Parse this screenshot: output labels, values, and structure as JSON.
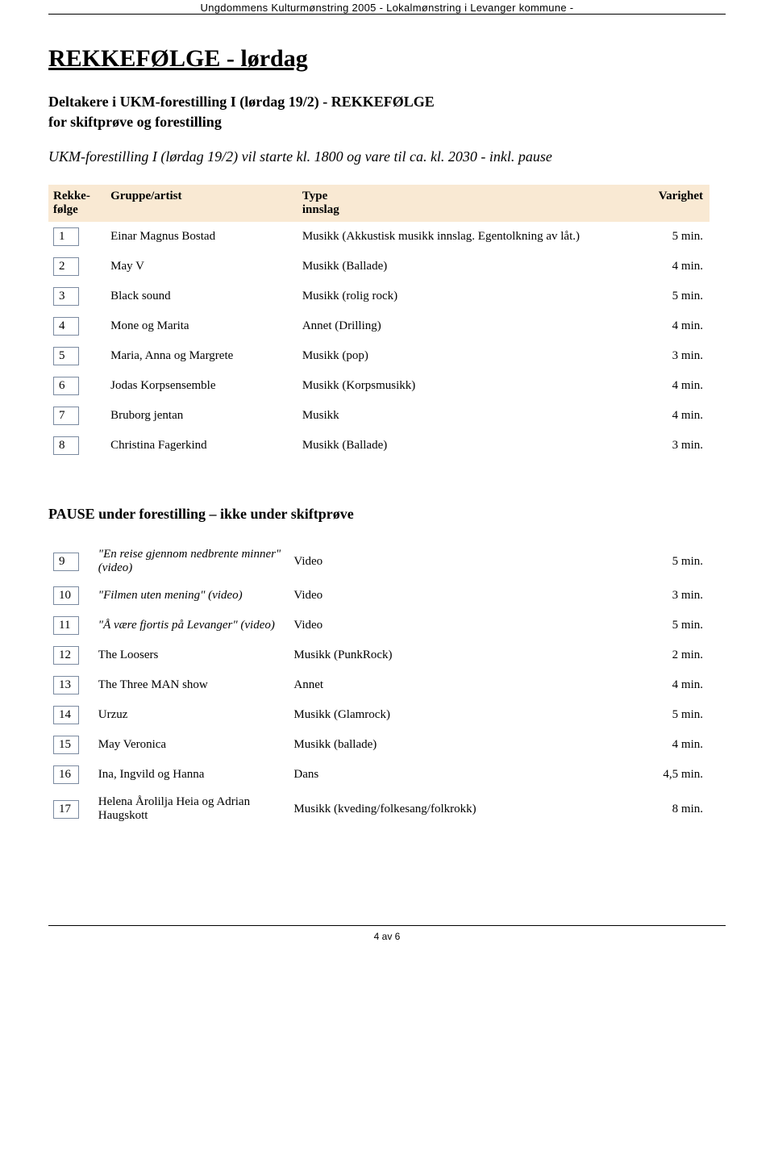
{
  "document": {
    "header_line": "Ungdommens Kulturmønstring 2005 - Lokalmønstring i Levanger kommune -",
    "title": "REKKEFØLGE - lørdag",
    "subtitle_line1": "Deltakere i UKM-forestilling I  (lørdag 19/2)    -   REKKEFØLGE",
    "subtitle_line2": "for skiftprøve og forestilling",
    "note": "UKM-forestilling I (lørdag 19/2) vil starte kl. 1800 og vare til ca. kl. 2030   -  inkl. pause",
    "pause_heading": "PAUSE under forestilling – ikke under skiftprøve",
    "footer": "4 av 6"
  },
  "columns": {
    "c1_l1": "Rekke-",
    "c1_l2": "følge",
    "c2": "Gruppe/artist",
    "c3_l1": "Type",
    "c3_l2": "innslag",
    "c4": "Varighet"
  },
  "rows1": [
    {
      "n": "1",
      "artist": "Einar Magnus Bostad",
      "type": "Musikk (Akkustisk musikk innslag. Egentolkning av låt.)",
      "dur": "5 min.",
      "italic": false
    },
    {
      "n": "2",
      "artist": "May V",
      "type": "Musikk (Ballade)",
      "dur": "4 min.",
      "italic": false
    },
    {
      "n": "3",
      "artist": "Black sound",
      "type": "Musikk (rolig rock)",
      "dur": "5 min.",
      "italic": false
    },
    {
      "n": "4",
      "artist": "Mone og Marita",
      "type": "Annet (Drilling)",
      "dur": "4 min.",
      "italic": false
    },
    {
      "n": "5",
      "artist": "Maria, Anna og Margrete",
      "type": "Musikk (pop)",
      "dur": "3 min.",
      "italic": false
    },
    {
      "n": "6",
      "artist": "Jodas Korpsensemble",
      "type": "Musikk (Korpsmusikk)",
      "dur": "4 min.",
      "italic": false
    },
    {
      "n": "7",
      "artist": "Bruborg jentan",
      "type": "Musikk",
      "dur": "4 min.",
      "italic": false
    },
    {
      "n": "8",
      "artist": "Christina Fagerkind",
      "type": "Musikk (Ballade)",
      "dur": "3 min.",
      "italic": false
    }
  ],
  "rows2": [
    {
      "n": "9",
      "artist": "\"En reise gjennom nedbrente minner\"  (video)",
      "type": "Video",
      "dur": "5 min.",
      "italic": true
    },
    {
      "n": "10",
      "artist": "\"Filmen uten mening\"  (video)",
      "type": "Video",
      "dur": "3 min.",
      "italic": true
    },
    {
      "n": "11",
      "artist": "\"Å være fjortis på Levanger\"  (video)",
      "type": "Video",
      "dur": "5 min.",
      "italic": true
    },
    {
      "n": "12",
      "artist": "The Loosers",
      "type": "Musikk (PunkRock)",
      "dur": "2 min.",
      "italic": false
    },
    {
      "n": "13",
      "artist": "The Three MAN show",
      "type": "Annet",
      "dur": "4 min.",
      "italic": false
    },
    {
      "n": "14",
      "artist": "Urzuz",
      "type": "Musikk (Glamrock)",
      "dur": "5 min.",
      "italic": false
    },
    {
      "n": "15",
      "artist": "May Veronica",
      "type": "Musikk (ballade)",
      "dur": "4 min.",
      "italic": false
    },
    {
      "n": "16",
      "artist": "Ina, Ingvild og Hanna",
      "type": "Dans",
      "dur": "4,5 min.",
      "italic": false
    },
    {
      "n": "17",
      "artist": "Helena Årolilja Heia og Adrian Haugskott",
      "type": "Musikk (kveding/folkesang/folkrokk)",
      "dur": "8 min.",
      "italic": false
    }
  ]
}
